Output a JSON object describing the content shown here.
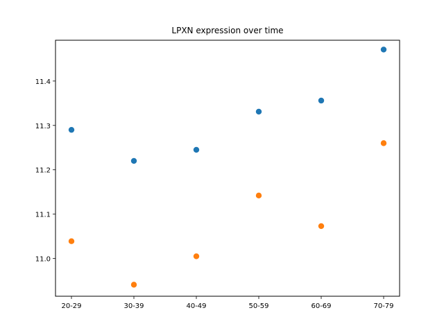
{
  "chart_data": {
    "type": "scatter",
    "title": "LPXN expression over time",
    "xlabel": "",
    "ylabel": "",
    "categories": [
      "20-29",
      "30-39",
      "40-49",
      "50-59",
      "60-69",
      "70-79"
    ],
    "ylim": [
      10.915,
      11.492
    ],
    "yticks": [
      11.0,
      11.1,
      11.2,
      11.3,
      11.4
    ],
    "ytick_labels": [
      "11.0",
      "11.1",
      "11.2",
      "11.3",
      "11.4"
    ],
    "grid": false,
    "series": [
      {
        "values": [
          11.29,
          11.22,
          11.245,
          11.331,
          11.356,
          11.471
        ],
        "color": "#1f77b4"
      },
      {
        "values": [
          11.039,
          10.941,
          11.005,
          11.142,
          11.073,
          11.26
        ],
        "color": "#ff7f0e"
      }
    ]
  }
}
